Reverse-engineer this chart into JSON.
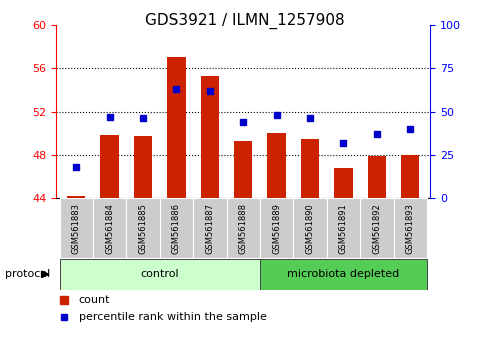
{
  "title": "GDS3921 / ILMN_1257908",
  "samples": [
    "GSM561883",
    "GSM561884",
    "GSM561885",
    "GSM561886",
    "GSM561887",
    "GSM561888",
    "GSM561889",
    "GSM561890",
    "GSM561891",
    "GSM561892",
    "GSM561893"
  ],
  "counts": [
    44.2,
    49.8,
    49.7,
    57.0,
    55.3,
    49.3,
    50.0,
    49.5,
    46.8,
    47.9,
    48.0
  ],
  "percentile_ranks": [
    18,
    47,
    46,
    63,
    62,
    44,
    48,
    46,
    32,
    37,
    40
  ],
  "ylim_left": [
    44,
    60
  ],
  "ylim_right": [
    0,
    100
  ],
  "yticks_left": [
    44,
    48,
    52,
    56,
    60
  ],
  "yticks_right": [
    0,
    25,
    50,
    75,
    100
  ],
  "bar_color": "#cc2200",
  "square_color": "#0000cc",
  "bar_bottom": 44,
  "control_samples": 6,
  "control_label": "control",
  "microbiota_label": "microbiota depleted",
  "protocol_label": "protocol",
  "legend_bar_label": "count",
  "legend_square_label": "percentile rank within the sample",
  "control_color": "#ccffcc",
  "microbiota_color": "#55cc55",
  "background_color": "#ffffff",
  "title_fontsize": 11,
  "axis_fontsize": 8,
  "legend_fontsize": 8
}
